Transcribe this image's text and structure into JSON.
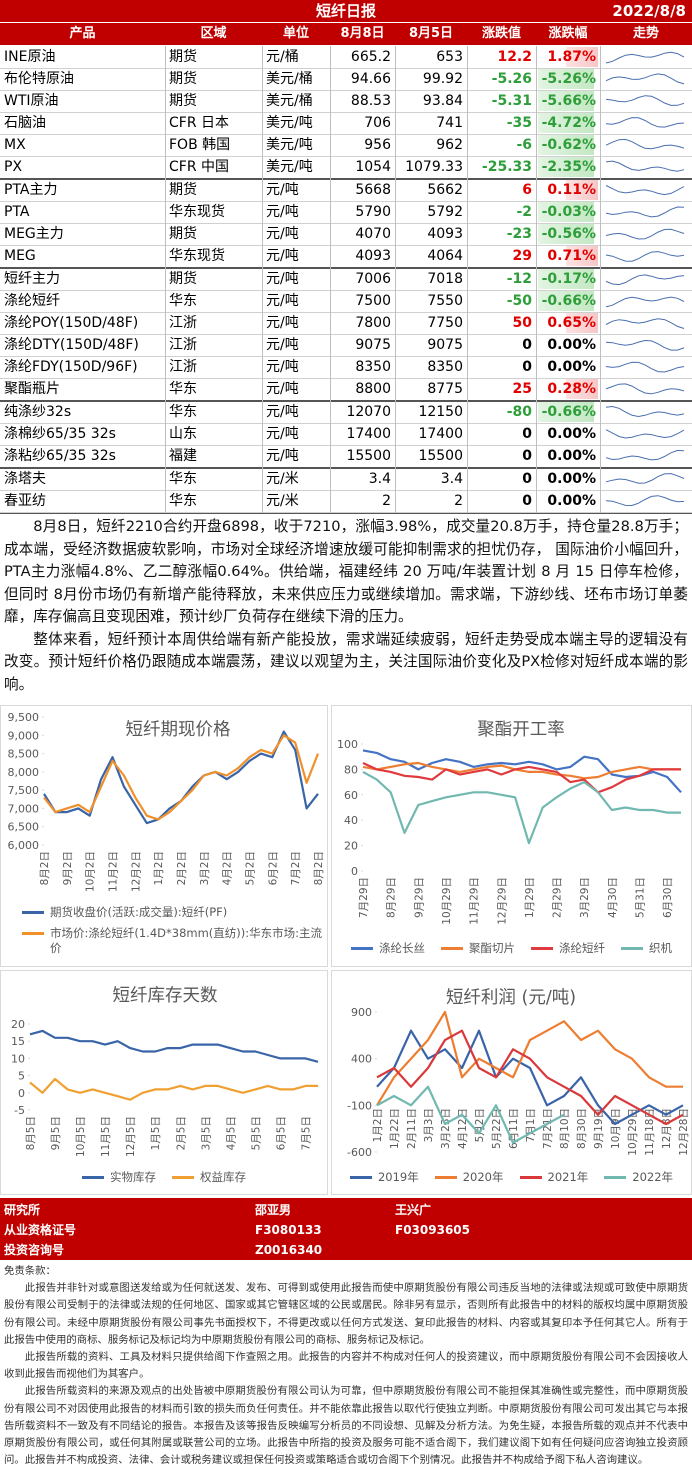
{
  "header": {
    "title": "短纤日报",
    "date": "2022/8/8"
  },
  "table": {
    "columns": [
      "产品",
      "区域",
      "单位",
      "8月8日",
      "8月5日",
      "涨跌值",
      "涨跌幅",
      "走势"
    ],
    "rows": [
      [
        "INE原油",
        "期货",
        "元/桶",
        "665.2",
        "653",
        "12.2",
        "1.87%"
      ],
      [
        "布伦特原油",
        "期货",
        "美元/桶",
        "94.66",
        "99.92",
        "-5.26",
        "-5.26%"
      ],
      [
        "WTI原油",
        "期货",
        "美元/桶",
        "88.53",
        "93.84",
        "-5.31",
        "-5.66%"
      ],
      [
        "石脑油",
        "CFR 日本",
        "美元/吨",
        "706",
        "741",
        "-35",
        "-4.72%"
      ],
      [
        "MX",
        "FOB 韩国",
        "美元/吨",
        "956",
        "962",
        "-6",
        "-0.62%"
      ],
      [
        "PX",
        "CFR 中国",
        "美元/吨",
        "1054",
        "1079.33",
        "-25.33",
        "-2.35%"
      ],
      [
        "PTA主力",
        "期货",
        "元/吨",
        "5668",
        "5662",
        "6",
        "0.11%"
      ],
      [
        "PTA",
        "华东现货",
        "元/吨",
        "5790",
        "5792",
        "-2",
        "-0.03%"
      ],
      [
        "MEG主力",
        "期货",
        "元/吨",
        "4070",
        "4093",
        "-23",
        "-0.56%"
      ],
      [
        "MEG",
        "华东现货",
        "元/吨",
        "4093",
        "4064",
        "29",
        "0.71%"
      ],
      [
        "短纤主力",
        "期货",
        "元/吨",
        "7006",
        "7018",
        "-12",
        "-0.17%"
      ],
      [
        "涤纶短纤",
        "华东",
        "元/吨",
        "7500",
        "7550",
        "-50",
        "-0.66%"
      ],
      [
        "涤纶POY(150D/48F)",
        "江浙",
        "元/吨",
        "7800",
        "7750",
        "50",
        "0.65%"
      ],
      [
        "涤纶DTY(150D/48F)",
        "江浙",
        "元/吨",
        "9075",
        "9075",
        "0",
        "0.00%"
      ],
      [
        "涤纶FDY(150D/96F)",
        "江浙",
        "元/吨",
        "8350",
        "8350",
        "0",
        "0.00%"
      ],
      [
        "聚酯瓶片",
        "华东",
        "元/吨",
        "8800",
        "8775",
        "25",
        "0.28%"
      ],
      [
        "纯涤纱32s",
        "华东",
        "元/吨",
        "12070",
        "12150",
        "-80",
        "-0.66%"
      ],
      [
        "涤棉纱65/35 32s",
        "山东",
        "元/吨",
        "17400",
        "17400",
        "0",
        "0.00%"
      ],
      [
        "涤粘纱65/35 32s",
        "福建",
        "元/吨",
        "15500",
        "15500",
        "0",
        "0.00%"
      ],
      [
        "涤塔夫",
        "华东",
        "元/米",
        "3.4",
        "3.4",
        "0",
        "0.00%"
      ],
      [
        "春亚纺",
        "华东",
        "元/米",
        "2",
        "2",
        "0",
        "0.00%"
      ]
    ]
  },
  "analysis": {
    "paragraphs": [
      "8月8日，短纤2210合约开盘6898，收于7210，涨幅3.98%，成交量20.8万手，持仓量28.8万手；成本端，受经济数据疲软影响，市场对全球经济增速放缓可能抑制需求的担忧仍存， 国际油价小幅回升，PTA主力涨幅4.8%、乙二醇涨幅0.64%。供给端，福建经纬 20 万吨/年装置计划 8 月 15 日停车检修，但同时 8月份市场仍有新增产能待释放，未来供应压力或继续增加。需求端，下游纱线、坯布市场订单萎靡，库存偏高且变现困难，预计纱厂负荷存在继续下滑的压力。",
      "整体来看，短纤预计本周供给端有新产能投放，需求端延续疲弱，短纤走势受成本端主导的逻辑没有改变。预计短纤价格仍跟随成本端震荡，建议以观望为主，关注国际油价变化及PX检修对短纤成本端的影响。"
    ]
  },
  "chart_data": [
    {
      "type": "line",
      "title": "短纤期现价格",
      "categories": [
        "8月2日",
        null,
        "9月2日",
        null,
        "10月2日",
        null,
        "11月2日",
        null,
        "12月2日",
        null,
        "1月2日",
        null,
        "2月2日",
        null,
        "3月2日",
        null,
        "4月2日",
        null,
        "5月2日",
        null,
        "6月2日",
        null,
        "7月2日",
        null,
        "8月2日"
      ],
      "series": [
        {
          "name": "期货收盘价(活跃:成交量):短纤(PF)",
          "color": "#3a64a8",
          "values": [
            7400,
            6900,
            6900,
            7000,
            6800,
            7800,
            8400,
            7600,
            7100,
            6600,
            6700,
            7000,
            7200,
            7600,
            7900,
            8000,
            7800,
            8000,
            8300,
            8500,
            8400,
            9100,
            8600,
            7000,
            7400
          ]
        },
        {
          "name": "市场价:涤纶短纤(1.4D*38mm(直纺)):华东市场:主流价",
          "color": "#f0902a",
          "values": [
            7300,
            6900,
            7000,
            7100,
            6900,
            7600,
            8300,
            7900,
            7300,
            6800,
            6700,
            6900,
            7200,
            7500,
            7900,
            8000,
            7900,
            8100,
            8400,
            8600,
            8500,
            9000,
            8800,
            7700,
            8500
          ]
        }
      ],
      "ylim": [
        6000,
        9500
      ],
      "yticks": [
        {
          "value": 6000,
          "label": "6,000"
        },
        {
          "value": 6500,
          "label": "6,500"
        },
        {
          "value": 7000,
          "label": "7,000"
        },
        {
          "value": 7500,
          "label": "7,500"
        },
        {
          "value": 8000,
          "label": "8,000"
        },
        {
          "value": 8500,
          "label": "8,500"
        },
        {
          "value": 9000,
          "label": "9,000"
        },
        {
          "value": 9500,
          "label": "9,500"
        }
      ],
      "grid": false,
      "legend": "bottom"
    },
    {
      "type": "line",
      "title": "聚酯开工率",
      "categories": [
        "7月29日",
        null,
        "8月29日",
        null,
        "9月29日",
        null,
        "10月29日",
        null,
        "11月29日",
        null,
        "12月29日",
        null,
        "1月29日",
        null,
        "2月29日",
        null,
        "3月29日",
        null,
        "4月30日",
        null,
        "5月31日",
        null,
        "6月30日",
        null
      ],
      "series": [
        {
          "name": "涤纶长丝",
          "color": "#4472c4",
          "values": [
            95,
            93,
            88,
            86,
            80,
            85,
            88,
            86,
            82,
            84,
            85,
            84,
            86,
            84,
            80,
            82,
            90,
            88,
            76,
            74,
            75,
            78,
            74,
            62
          ]
        },
        {
          "name": "聚酯切片",
          "color": "#ed7d31",
          "values": [
            82,
            80,
            82,
            84,
            85,
            82,
            80,
            78,
            80,
            82,
            83,
            80,
            78,
            78,
            76,
            75,
            73,
            74,
            78,
            80,
            82,
            80,
            80,
            80
          ]
        },
        {
          "name": "涤纶短纤",
          "color": "#e0393e",
          "values": [
            85,
            80,
            78,
            75,
            74,
            72,
            80,
            76,
            78,
            80,
            76,
            80,
            82,
            80,
            78,
            70,
            72,
            62,
            66,
            72,
            75,
            80,
            80,
            80
          ]
        },
        {
          "name": "织机",
          "color": "#70b8b0",
          "values": [
            78,
            72,
            62,
            30,
            52,
            55,
            58,
            60,
            62,
            62,
            60,
            58,
            22,
            50,
            58,
            65,
            70,
            62,
            48,
            50,
            48,
            48,
            46,
            46
          ]
        }
      ],
      "ylim": [
        0,
        100
      ],
      "yticks": [
        0,
        20,
        40,
        60,
        80,
        100
      ],
      "grid": false,
      "legend": "bottom"
    },
    {
      "type": "line",
      "title": "短纤库存天数",
      "categories": [
        "8月5日",
        null,
        "9月5日",
        null,
        "10月5日",
        null,
        "11月5日",
        null,
        "12月5日",
        null,
        "1月5日",
        null,
        "2月5日",
        null,
        "3月5日",
        null,
        "4月5日",
        null,
        "5月5日",
        null,
        "6月5日",
        null,
        "7月5日",
        null
      ],
      "series": [
        {
          "name": "实物库存",
          "color": "#3a64a8",
          "values": [
            17,
            18,
            16,
            16,
            15,
            15,
            14,
            15,
            13,
            12,
            12,
            13,
            13,
            14,
            14,
            14,
            13,
            12,
            12,
            11,
            10,
            10,
            10,
            9
          ]
        },
        {
          "name": "权益库存",
          "color": "#f0a030",
          "values": [
            3,
            0,
            4,
            1,
            0,
            1,
            0,
            -1,
            -2,
            0,
            1,
            1,
            2,
            1,
            2,
            2,
            1,
            0,
            1,
            2,
            1,
            1,
            2,
            2
          ]
        }
      ],
      "ylim": [
        -5,
        20
      ],
      "yticks": [
        -5,
        0,
        5,
        10,
        15,
        20
      ],
      "grid": false,
      "legend": "bottom"
    },
    {
      "type": "line",
      "title": "短纤利润 (元/吨)",
      "categories": [
        "1月2日",
        "1月22日",
        "2月11日",
        "3月3日",
        "3月23日",
        "4月12日",
        "5月2日",
        "5月22日",
        "6月11日",
        "7月1日",
        "7月21日",
        "8月10日",
        "8月30日",
        "9月19日",
        "10月9日",
        "10月29日",
        "11月18日",
        "12月8日",
        "12月28日"
      ],
      "series": [
        {
          "name": "2019年",
          "color": "#3a64a8",
          "values": [
            100,
            300,
            700,
            400,
            500,
            300,
            700,
            200,
            400,
            300,
            -100,
            0,
            200,
            -100,
            -300,
            -200,
            -100,
            -200,
            -100
          ]
        },
        {
          "name": "2020年",
          "color": "#ed7d31",
          "values": [
            -100,
            200,
            400,
            600,
            900,
            200,
            400,
            300,
            200,
            600,
            700,
            800,
            600,
            700,
            500,
            400,
            200,
            100,
            100
          ]
        },
        {
          "name": "2021年",
          "color": "#d9393b",
          "values": [
            200,
            300,
            100,
            300,
            600,
            700,
            300,
            200,
            500,
            400,
            200,
            100,
            0,
            -200,
            0,
            -100,
            -200,
            -300,
            -200
          ]
        },
        {
          "name": "2022年",
          "color": "#70b8b0",
          "values": [
            -100,
            0,
            -100,
            100,
            -300,
            -200,
            -400,
            -100,
            -500,
            -400,
            -300,
            -200,
            null,
            null,
            null,
            null,
            null,
            null,
            null
          ]
        }
      ],
      "ylim": [
        -600,
        900
      ],
      "yticks": [
        -600,
        -100,
        400,
        900
      ],
      "grid": false,
      "legend": "bottom"
    }
  ],
  "footer": {
    "labels": [
      "研究所",
      "从业资格证号",
      "投资咨询号"
    ],
    "analysts": [
      {
        "name": "邵亚男",
        "cert": "F3080133",
        "invest": "Z0016340"
      },
      {
        "name": "王兴广",
        "cert": "F03093605"
      }
    ]
  },
  "disclaimer": {
    "title": "免责条款：",
    "paragraphs": [
      "此报告并非针对或意图送发给或为任何就送发、发布、可得到或使用此报告而使中原期货股份有限公司违反当地的法律或法规或可致使中原期货股份有限公司受制于的法律或法规的任何地区、国家或其它管辖区域的公民或居民。除非另有显示，否则所有此报告中的材料的版权均属中原期货股份有限公司。未经中原期货股份有限公司事先书面授权下，不得更改或以任何方式发送、复印此报告的材料、内容或其复印本予任何其它人。所有于此报告中使用的商标、服务标记及标记均为中原期货股份有限公司的商标、服务标记及标记。",
      "此报告所载的资料、工具及材料只提供给阁下作查照之用。此报告的内容并不构成对任何人的投资建议，而中原期货股份有限公司不会因接收人收到此报告而视他们为其客户。",
      "此报告所载资料的来源及观点的出处皆被中原期货股份有限公司认为可靠，但中原期货股份有限公司不能担保其准确性或完整性，而中原期货股份有限公司不对因使用此报告的材料而引致的损失而负任何责任。并不能依靠此报告以取代行使独立判断。中原期货股份有限公司可发出其它与本报告所载资料不一致及有不同结论的报告。本报告及该等报告反映编写分析员的不同设想、见解及分析方法。为免生疑，本报告所载的观点并不代表中原期货股份有限公司，或任何其附属或联营公司的立场。此报告中所指的投资及服务可能不适合阁下，我们建议阁下如有任何疑问应咨询独立投资顾问。此报告并不构成投资、法律、会计或税务建议或担保任何投资或策略适合或切合阁下个别情况。此报告并不构成给予阁下私人咨询建议。"
    ]
  }
}
